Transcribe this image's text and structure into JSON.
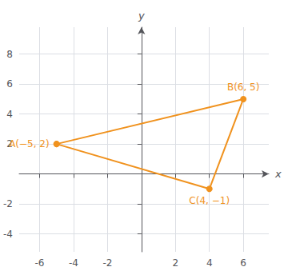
{
  "chart_data": {
    "type": "line",
    "x": [
      -5,
      6,
      4,
      -5
    ],
    "values": [
      2,
      5,
      -1,
      2
    ],
    "value_labels": [
      "A(−5, 2)",
      "B(6, 5)",
      "C(4, −1)",
      null
    ],
    "color": "#f0921e",
    "marker": "circle",
    "xlabel": "x",
    "ylabel": "y",
    "xlim": [
      -7.2,
      7.5
    ],
    "ylim": [
      -5.2,
      9.8
    ],
    "xticks": [
      -6,
      -4,
      -2,
      2,
      4,
      6
    ],
    "yticks": [
      -4,
      -2,
      2,
      4,
      6,
      8
    ],
    "grid": true
  }
}
